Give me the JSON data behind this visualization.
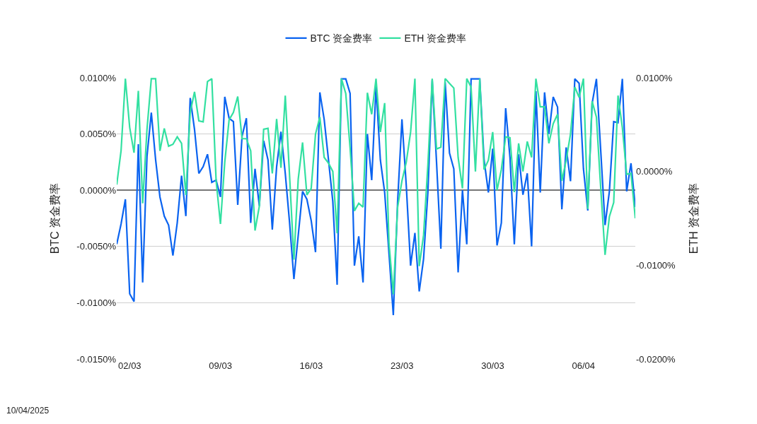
{
  "chart_data": {
    "type": "line",
    "x": [
      "2025-03-01T00:00",
      "2025-03-01T08:00",
      "2025-03-01T16:00",
      "2025-03-02T00:00",
      "2025-03-02T08:00",
      "2025-03-02T16:00",
      "2025-03-03T00:00",
      "2025-03-03T08:00",
      "2025-03-03T16:00",
      "2025-03-04T00:00",
      "2025-03-04T08:00",
      "2025-03-04T16:00",
      "2025-03-05T00:00",
      "2025-03-05T08:00",
      "2025-03-05T16:00",
      "2025-03-06T00:00",
      "2025-03-06T08:00",
      "2025-03-06T16:00",
      "2025-03-07T00:00",
      "2025-03-07T08:00",
      "2025-03-07T16:00",
      "2025-03-08T00:00",
      "2025-03-08T08:00",
      "2025-03-08T16:00",
      "2025-03-09T00:00",
      "2025-03-09T08:00",
      "2025-03-09T16:00",
      "2025-03-10T00:00",
      "2025-03-10T08:00",
      "2025-03-10T16:00",
      "2025-03-11T00:00",
      "2025-03-11T08:00",
      "2025-03-11T16:00",
      "2025-03-12T00:00",
      "2025-03-12T08:00",
      "2025-03-12T16:00",
      "2025-03-13T00:00",
      "2025-03-13T08:00",
      "2025-03-13T16:00",
      "2025-03-14T00:00",
      "2025-03-14T08:00",
      "2025-03-14T16:00",
      "2025-03-15T00:00",
      "2025-03-15T08:00",
      "2025-03-15T16:00",
      "2025-03-16T00:00",
      "2025-03-16T08:00",
      "2025-03-16T16:00",
      "2025-03-17T00:00",
      "2025-03-17T08:00",
      "2025-03-17T16:00",
      "2025-03-18T00:00",
      "2025-03-18T08:00",
      "2025-03-18T16:00",
      "2025-03-19T00:00",
      "2025-03-19T08:00",
      "2025-03-19T16:00",
      "2025-03-20T00:00",
      "2025-03-20T08:00",
      "2025-03-20T16:00",
      "2025-03-21T00:00",
      "2025-03-21T08:00",
      "2025-03-21T16:00",
      "2025-03-22T00:00",
      "2025-03-22T08:00",
      "2025-03-22T16:00",
      "2025-03-23T00:00",
      "2025-03-23T08:00",
      "2025-03-23T16:00",
      "2025-03-24T00:00",
      "2025-03-24T08:00",
      "2025-03-24T16:00",
      "2025-03-25T00:00",
      "2025-03-25T08:00",
      "2025-03-25T16:00",
      "2025-03-26T00:00",
      "2025-03-26T08:00",
      "2025-03-26T16:00",
      "2025-03-27T00:00",
      "2025-03-27T08:00",
      "2025-03-27T16:00",
      "2025-03-28T00:00",
      "2025-03-28T08:00",
      "2025-03-28T16:00",
      "2025-03-29T00:00",
      "2025-03-29T08:00",
      "2025-03-29T16:00",
      "2025-03-30T00:00",
      "2025-03-30T08:00",
      "2025-03-30T16:00",
      "2025-03-31T00:00",
      "2025-03-31T08:00",
      "2025-03-31T16:00",
      "2025-04-01T00:00",
      "2025-04-01T08:00",
      "2025-04-01T16:00",
      "2025-04-02T00:00",
      "2025-04-02T08:00",
      "2025-04-02T16:00",
      "2025-04-03T00:00",
      "2025-04-03T08:00",
      "2025-04-03T16:00",
      "2025-04-04T00:00",
      "2025-04-04T08:00",
      "2025-04-04T16:00",
      "2025-04-05T00:00",
      "2025-04-05T08:00",
      "2025-04-05T16:00",
      "2025-04-06T00:00",
      "2025-04-06T08:00",
      "2025-04-06T16:00",
      "2025-04-07T00:00",
      "2025-04-07T08:00",
      "2025-04-07T16:00",
      "2025-04-08T00:00",
      "2025-04-08T08:00",
      "2025-04-08T16:00",
      "2025-04-09T00:00",
      "2025-04-09T08:00",
      "2025-04-09T16:00",
      "2025-04-10T00:00"
    ],
    "series": [
      {
        "name": "BTC 资金费率",
        "color": "#0a63f0",
        "values": [
          -0.0048,
          -0.003,
          -0.0008,
          -0.0092,
          -0.0099,
          0.0041,
          -0.0082,
          0.003,
          0.0069,
          0.0027,
          -0.0006,
          -0.0023,
          -0.0031,
          -0.0058,
          -0.0029,
          0.0013,
          -0.0023,
          0.0082,
          0.0054,
          0.0015,
          0.0021,
          0.0032,
          0.0007,
          0.0009,
          -0.0006,
          0.0083,
          0.0064,
          0.0061,
          -0.0013,
          0.0048,
          0.0064,
          -0.0029,
          0.0019,
          -0.0014,
          0.0044,
          0.0027,
          -0.0035,
          0.0021,
          0.0052,
          0.0015,
          -0.0029,
          -0.0079,
          -0.004,
          -0.0001,
          -0.0008,
          -0.0027,
          -0.0055,
          0.0087,
          0.0063,
          0.0027,
          -0.001,
          -0.0084,
          0.0099,
          0.0099,
          0.0086,
          -0.0067,
          -0.0041,
          -0.0082,
          0.005,
          0.0009,
          0.0092,
          0.0027,
          -0.0002,
          -0.0056,
          -0.0111,
          -0.001,
          0.0063,
          0.0004,
          -0.0067,
          -0.0038,
          -0.009,
          -0.0061,
          -0.0002,
          0.0098,
          0.0025,
          -0.0052,
          0.0096,
          0.0033,
          0.0019,
          -0.0073,
          0.0,
          -0.0048,
          0.0099,
          0.0099,
          0.0099,
          0.0027,
          -0.0002,
          0.0037,
          -0.0049,
          -0.0029,
          0.0073,
          0.0029,
          -0.0048,
          0.0032,
          -0.0004,
          0.0015,
          -0.005,
          0.0088,
          -0.0002,
          0.0087,
          0.005,
          0.0083,
          0.0074,
          -0.0017,
          0.0038,
          0.0008,
          0.0099,
          0.0095,
          0.0019,
          -0.0018,
          0.0077,
          0.0099,
          0.0035,
          -0.0031,
          -0.0001,
          0.0061,
          0.006,
          0.0099,
          -0.0001,
          0.0024,
          -0.0015
        ]
      },
      {
        "name": "ETH 资金费率",
        "color": "#33e0a1",
        "axis": "y2",
        "values": [
          -0.0014,
          0.0022,
          0.0099,
          0.0047,
          0.002,
          0.0086,
          -0.0034,
          0.0045,
          0.0099,
          0.0099,
          0.0022,
          0.0046,
          0.0027,
          0.0029,
          0.0037,
          0.003,
          -0.0025,
          0.0063,
          0.0085,
          0.0054,
          0.0053,
          0.0096,
          0.0099,
          -0.001,
          -0.0056,
          0.001,
          0.0055,
          0.0063,
          0.008,
          0.0035,
          0.0035,
          0.0022,
          -0.0063,
          -0.0037,
          0.0045,
          0.0046,
          -0.0002,
          0.0056,
          0.0004,
          0.0081,
          -0.0005,
          -0.0094,
          -0.0008,
          0.0031,
          -0.0025,
          -0.0018,
          0.004,
          0.0058,
          0.0015,
          0.0009,
          0.0,
          -0.0066,
          0.0099,
          0.0083,
          0.0025,
          -0.0042,
          -0.0034,
          -0.0038,
          0.0084,
          0.0061,
          0.0099,
          0.0042,
          0.0073,
          -0.0076,
          -0.0131,
          -0.0038,
          -0.001,
          0.001,
          0.0042,
          0.0099,
          -0.0101,
          -0.0068,
          0.0007,
          0.0099,
          0.0024,
          0.0026,
          0.0099,
          0.0094,
          0.0089,
          0.0015,
          -0.0018,
          0.0099,
          0.009,
          0.0,
          0.0099,
          0.0002,
          0.0012,
          0.0042,
          -0.002,
          0.0002,
          0.0037,
          0.0036,
          -0.0022,
          0.003,
          0.0,
          0.0032,
          0.0015,
          0.0099,
          0.0069,
          0.0069,
          0.003,
          0.0051,
          0.0061,
          -0.001,
          0.0012,
          0.004,
          0.009,
          0.0079,
          0.0099,
          -0.004,
          0.0075,
          0.0058,
          -0.0018,
          -0.0089,
          -0.0048,
          -0.0033,
          0.0081,
          0.0047,
          -0.0003,
          -0.0002,
          -0.005
        ]
      }
    ],
    "xlim": [
      "2025-03-01T00:00",
      "2025-04-10T00:00"
    ],
    "xticks": [
      {
        "value": "2025-03-02",
        "label": "02/03"
      },
      {
        "value": "2025-03-09",
        "label": "09/03"
      },
      {
        "value": "2025-03-16",
        "label": "16/03"
      },
      {
        "value": "2025-03-23",
        "label": "23/03"
      },
      {
        "value": "2025-03-30",
        "label": "30/03"
      },
      {
        "value": "2025-04-06",
        "label": "06/04"
      }
    ],
    "ylim": [
      -0.015,
      0.01
    ],
    "yticks": [
      {
        "value": -0.015,
        "label": "-0.0150%"
      },
      {
        "value": -0.01,
        "label": "-0.0100%"
      },
      {
        "value": -0.005,
        "label": "-0.0050%"
      },
      {
        "value": 0,
        "label": "0.0000%"
      },
      {
        "value": 0.005,
        "label": "0.0050%"
      },
      {
        "value": 0.01,
        "label": "0.0100%"
      }
    ],
    "y2lim": [
      -0.02,
      0.01
    ],
    "y2ticks": [
      {
        "value": -0.02,
        "label": "-0.0200%"
      },
      {
        "value": -0.01,
        "label": "-0.0100%"
      },
      {
        "value": 0,
        "label": "0.0000%"
      },
      {
        "value": 0.01,
        "label": "0.0100%"
      }
    ],
    "ylabel": "BTC 资金费率",
    "y2label": "ETH 资金费率",
    "annotations": [
      "10/04/2025"
    ],
    "grid": "y",
    "legend": "top",
    "marker": "none",
    "line_style": "solid"
  }
}
